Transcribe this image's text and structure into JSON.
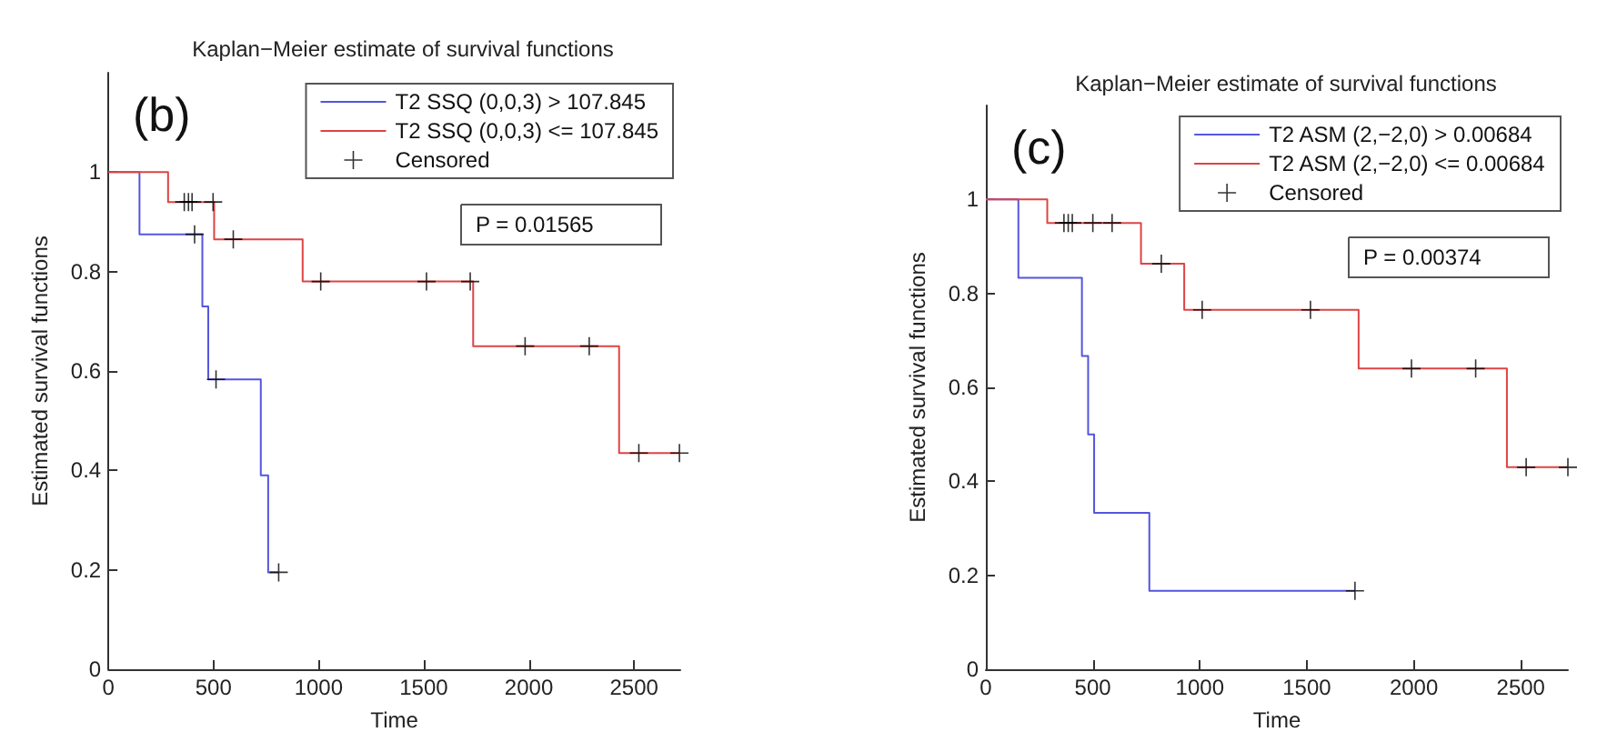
{
  "chart_data": [
    {
      "type": "step",
      "title": "Kaplan−Meier estimate of survival functions",
      "xlabel": "Time",
      "ylabel": "Estimated survival functions",
      "xlim": [
        0,
        2720
      ],
      "xticks": [
        0,
        500,
        1000,
        1500,
        2000,
        2500
      ],
      "ylim": [
        0,
        1.2
      ],
      "yticks": [
        0,
        0.2,
        0.4,
        0.6,
        0.8,
        1
      ],
      "legend": "top right",
      "annotations": [
        "(b)",
        "P = 0.01565"
      ],
      "series": [
        {
          "name": "T2 SSQ (0,0,3) > 107.845",
          "color": "#5555dd",
          "marker": "none",
          "x": [
            0,
            148,
            447,
            475,
            725,
            760,
            810
          ],
          "values": [
            1,
            0.875,
            0.73,
            0.583,
            0.39,
            0.195,
            0.195
          ]
        },
        {
          "name": "T2 SSQ (0,0,3) <= 107.845",
          "color": "#dd4444",
          "marker": "none",
          "x": [
            0,
            284,
            503,
            924,
            1735,
            2429,
            2716
          ],
          "values": [
            1,
            0.94,
            0.865,
            0.78,
            0.65,
            0.435,
            0.435
          ]
        },
        {
          "name": "Censored",
          "type": "scatter",
          "color": "#000000",
          "marker": "cross",
          "x": [
            410,
            512,
            810,
            361,
            381,
            398,
            498,
            594,
            1010,
            1513,
            1721,
            1982,
            2287,
            2523,
            2716
          ],
          "values": [
            0.875,
            0.583,
            0.195,
            0.94,
            0.94,
            0.94,
            0.94,
            0.865,
            0.78,
            0.78,
            0.78,
            0.65,
            0.65,
            0.435,
            0.435
          ]
        }
      ]
    },
    {
      "type": "step",
      "title": "Kaplan−Meier estimate of survival functions",
      "xlabel": "Time",
      "ylabel": "Estimated survival functions",
      "xlim": [
        0,
        2720
      ],
      "xticks": [
        0,
        500,
        1000,
        1500,
        2000,
        2500
      ],
      "ylim": [
        0,
        1.2
      ],
      "yticks": [
        0,
        0.2,
        0.4,
        0.6,
        0.8,
        1
      ],
      "legend": "top right",
      "annotations": [
        "(c)",
        "P = 0.00374"
      ],
      "series": [
        {
          "name": "T2 ASM (2,−2,0) > 0.00684",
          "color": "#5555dd",
          "marker": "none",
          "x": [
            0,
            152,
            449,
            478,
            506,
            764,
            1725
          ],
          "values": [
            1,
            0.833,
            0.667,
            0.5,
            0.333,
            0.167,
            0.167
          ]
        },
        {
          "name": "T2 ASM (2,−2,0) <= 0.00684",
          "color": "#dd4444",
          "marker": "none",
          "x": [
            0,
            287,
            725,
            927,
            1742,
            2435,
            2720
          ],
          "values": [
            1,
            0.95,
            0.863,
            0.765,
            0.64,
            0.43,
            0.43
          ]
        },
        {
          "name": "Censored",
          "type": "scatter",
          "color": "#000000",
          "marker": "cross",
          "x": [
            1725,
            365,
            385,
            404,
            500,
            590,
            820,
            1011,
            1517,
            1989,
            2289,
            2525,
            2720
          ],
          "values": [
            0.167,
            0.95,
            0.95,
            0.95,
            0.95,
            0.95,
            0.863,
            0.765,
            0.765,
            0.64,
            0.64,
            0.43,
            0.43
          ]
        }
      ]
    }
  ]
}
